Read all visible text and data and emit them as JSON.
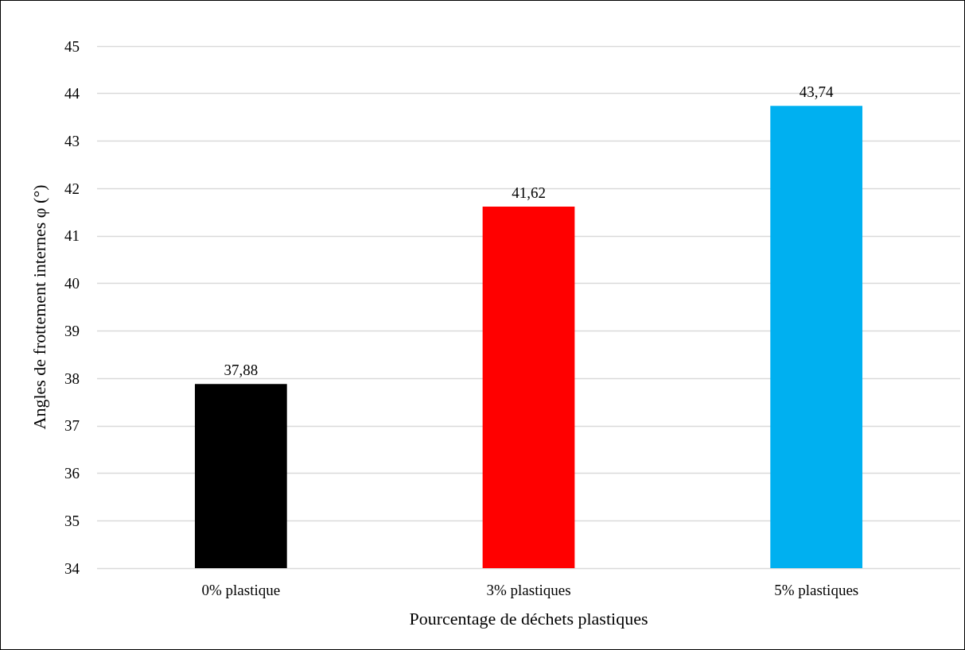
{
  "chart_data": {
    "type": "bar",
    "xlabel": "Pourcentage de déchets plastiques",
    "ylabel": "Angles de frottement internes φ (°)",
    "categories": [
      "0% plastique",
      "3% plastiques",
      "5% plastiques"
    ],
    "values": [
      37.88,
      41.62,
      43.74
    ],
    "colors": [
      "#000000",
      "#ff0000",
      "#00b0f0"
    ],
    "value_labels": [
      "37,88",
      "41,62",
      "43,74"
    ],
    "ylim": [
      34,
      45
    ],
    "yticks": [
      34,
      35,
      36,
      37,
      38,
      39,
      40,
      41,
      42,
      43,
      44,
      45
    ],
    "grid": "y"
  }
}
